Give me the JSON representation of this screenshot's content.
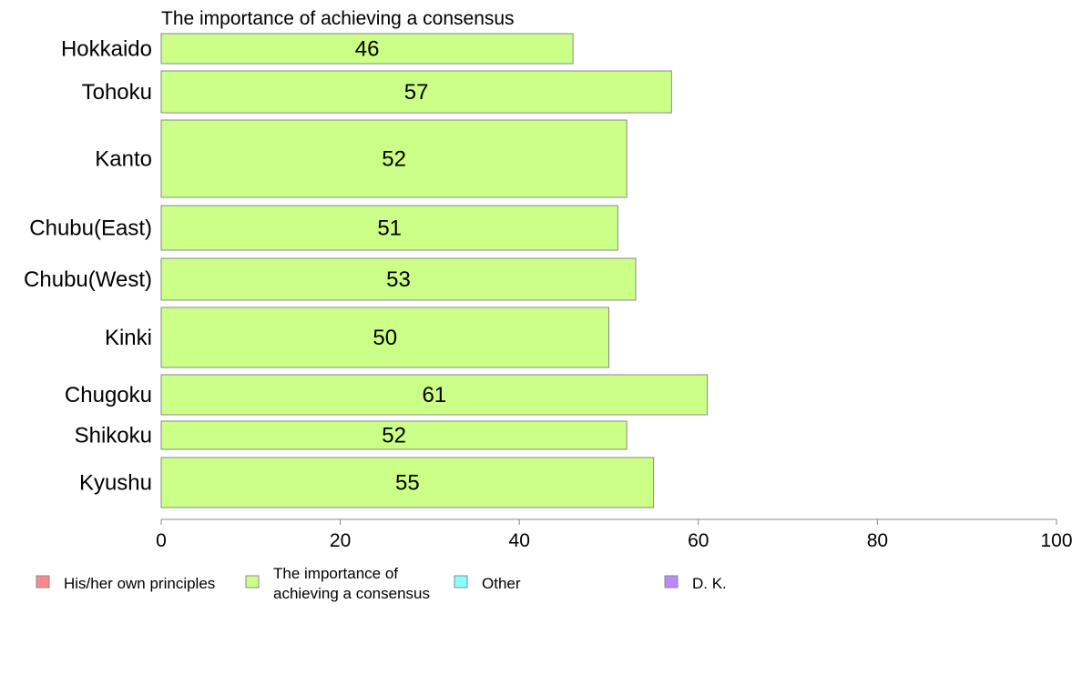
{
  "chart_data": {
    "type": "bar",
    "orientation": "horizontal",
    "title": "The importance of achieving a consensus",
    "categories": [
      "Hokkaido",
      "Tohoku",
      "Kanto",
      "Chubu(East)",
      "Chubu(West)",
      "Kinki",
      "Chugoku",
      "Shikoku",
      "Kyushu"
    ],
    "series": [
      {
        "name": "The importance of achieving a consensus",
        "values": [
          46,
          57,
          52,
          51,
          53,
          50,
          61,
          52,
          55
        ],
        "color": "#ccff88"
      }
    ],
    "xlim": [
      0,
      100
    ],
    "xticks": [
      0,
      20,
      40,
      60,
      80,
      100
    ],
    "grid": false,
    "legend": {
      "placement": "bottom",
      "entries": [
        {
          "label": "His/her own principles",
          "color": "#ff8888"
        },
        {
          "label": "The importance of achieving a consensus",
          "color": "#ccff88"
        },
        {
          "label": "Other",
          "color": "#88ffff"
        },
        {
          "label": "D. K.",
          "color": "#bb88ff"
        }
      ]
    }
  }
}
